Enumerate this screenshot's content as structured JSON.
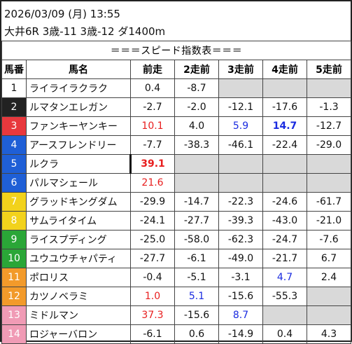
{
  "header": {
    "line1": "2026/03/09 (月) 13:55",
    "line2": "大井6R 3歳-11 3歳-12 ダ1400m"
  },
  "table_title": "＝＝＝スピード指数表＝＝＝",
  "columns": [
    "馬番",
    "馬名",
    "前走",
    "2走前",
    "3走前",
    "4走前",
    "5走前"
  ],
  "waku_colors": {
    "1": {
      "bg": "#ffffff",
      "fg": "#111111"
    },
    "2": {
      "bg": "#222222",
      "fg": "#ffffff"
    },
    "3": {
      "bg": "#e8383d",
      "fg": "#ffffff"
    },
    "4": {
      "bg": "#1f5fd6",
      "fg": "#ffffff"
    },
    "5": {
      "bg": "#f2d21c",
      "fg": "#ffffff"
    },
    "6": {
      "bg": "#2aa637",
      "fg": "#ffffff"
    },
    "7": {
      "bg": "#f29a2a",
      "fg": "#ffffff"
    },
    "8": {
      "bg": "#f09bb5",
      "fg": "#ffffff"
    }
  },
  "rows": [
    {
      "no": "1",
      "waku": "1",
      "name": "ライライラクラク",
      "v": [
        "0.4",
        "-8.7",
        "",
        "",
        ""
      ],
      "style": [
        "",
        "",
        "",
        "",
        ""
      ]
    },
    {
      "no": "2",
      "waku": "2",
      "name": "ルマタンエレガン",
      "v": [
        "-2.7",
        "-2.0",
        "-12.1",
        "-17.6",
        "-1.3"
      ],
      "style": [
        "",
        "",
        "",
        "",
        ""
      ]
    },
    {
      "no": "3",
      "waku": "3",
      "name": "ファンキーヤンキー",
      "v": [
        "10.1",
        "4.0",
        "5.9",
        "14.7",
        "-12.7"
      ],
      "style": [
        "red",
        "",
        "blue",
        "blue bold",
        ""
      ]
    },
    {
      "no": "4",
      "waku": "4",
      "name": "アースフレンドリー",
      "v": [
        "-7.7",
        "-38.3",
        "-46.1",
        "-22.4",
        "-29.0"
      ],
      "style": [
        "",
        "",
        "",
        "",
        ""
      ]
    },
    {
      "no": "5",
      "waku": "4",
      "name": "ルクラ",
      "v": [
        "39.1",
        "",
        "",
        "",
        ""
      ],
      "style": [
        "red bold",
        "",
        "",
        "",
        ""
      ]
    },
    {
      "no": "6",
      "waku": "4",
      "name": "パルマシェール",
      "v": [
        "21.6",
        "",
        "",
        "",
        ""
      ],
      "style": [
        "red",
        "",
        "",
        "",
        ""
      ]
    },
    {
      "no": "7",
      "waku": "5",
      "name": "グラッドキングダム",
      "v": [
        "-29.9",
        "-14.7",
        "-22.3",
        "-24.6",
        "-61.7"
      ],
      "style": [
        "",
        "",
        "",
        "",
        ""
      ]
    },
    {
      "no": "8",
      "waku": "5",
      "name": "サムライタイム",
      "v": [
        "-24.1",
        "-27.7",
        "-39.3",
        "-43.0",
        "-21.0"
      ],
      "style": [
        "",
        "",
        "",
        "",
        ""
      ]
    },
    {
      "no": "9",
      "waku": "6",
      "name": "ライスプディング",
      "v": [
        "-25.0",
        "-58.0",
        "-62.3",
        "-24.7",
        "-7.6"
      ],
      "style": [
        "",
        "",
        "",
        "",
        ""
      ]
    },
    {
      "no": "10",
      "waku": "6",
      "name": "ユウユウチャパティ",
      "v": [
        "-27.7",
        "-6.1",
        "-49.0",
        "-21.7",
        "6.7"
      ],
      "style": [
        "",
        "",
        "",
        "",
        ""
      ]
    },
    {
      "no": "11",
      "waku": "7",
      "name": "ポロリス",
      "v": [
        "-0.4",
        "-5.1",
        "-3.1",
        "4.7",
        "2.4"
      ],
      "style": [
        "",
        "",
        "",
        "blue",
        ""
      ]
    },
    {
      "no": "12",
      "waku": "7",
      "name": "カツノベラミ",
      "v": [
        "1.0",
        "5.1",
        "-15.6",
        "-55.3",
        ""
      ],
      "style": [
        "red",
        "blue",
        "",
        "",
        ""
      ]
    },
    {
      "no": "13",
      "waku": "8",
      "name": "ミドルマン",
      "v": [
        "37.3",
        "-15.6",
        "8.7",
        "",
        ""
      ],
      "style": [
        "red",
        "",
        "blue",
        "",
        ""
      ]
    },
    {
      "no": "14",
      "waku": "8",
      "name": "ロジャーバロン",
      "v": [
        "-6.1",
        "0.6",
        "-14.9",
        "0.4",
        "4.3"
      ],
      "style": [
        "",
        "",
        "",
        "",
        ""
      ]
    }
  ]
}
